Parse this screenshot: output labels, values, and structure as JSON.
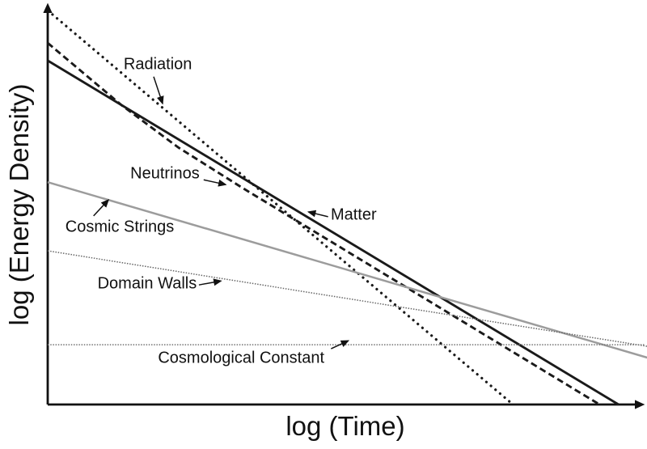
{
  "chart_data": {
    "type": "line",
    "title": "",
    "xlabel": "log (Time)",
    "ylabel": "log (Energy Density)",
    "x_range": [
      0,
      10.1
    ],
    "y_range": [
      0,
      10
    ],
    "grid": false,
    "axis_color": "#111111",
    "note": "Schematic log-log plot of cosmological energy densities vs time; axes unlabeled (arbitrary units).",
    "series": [
      {
        "name": "Radiation",
        "style": "dotted",
        "color": "#1a1a1a",
        "points": [
          [
            0.08,
            9.72
          ],
          [
            7.8,
            0.02
          ]
        ]
      },
      {
        "name": "Neutrinos",
        "style": "dashed",
        "color": "#1a1a1a",
        "points": [
          [
            0,
            9.01
          ],
          [
            1.24,
            7.46
          ],
          [
            2.19,
            6.41
          ],
          [
            3.27,
            5.4
          ],
          [
            9.27,
            0
          ]
        ]
      },
      {
        "name": "Matter",
        "style": "solid",
        "color": "#1a1a1a",
        "points": [
          [
            0,
            8.57
          ],
          [
            9.59,
            0
          ]
        ]
      },
      {
        "name": "Cosmic Strings",
        "style": "solid-gray",
        "color": "#9c9c9c",
        "points": [
          [
            0,
            5.54
          ],
          [
            10.07,
            1.17
          ]
        ]
      },
      {
        "name": "Domain Walls",
        "style": "fine-dotted",
        "color": "#666666",
        "points": [
          [
            0,
            3.83
          ],
          [
            10.07,
            1.45
          ]
        ]
      },
      {
        "name": "Cosmological Constant",
        "style": "fine-dotted",
        "color": "#717171",
        "points": [
          [
            0,
            1.49
          ],
          [
            10.03,
            1.49
          ]
        ]
      }
    ],
    "annotations": [
      {
        "text": "Radiation",
        "x": 1.85,
        "y": 8.47,
        "arrow": {
          "from": [
            1.78,
            8.17
          ],
          "to": [
            1.93,
            7.5
          ]
        }
      },
      {
        "text": "Neutrinos",
        "x": 1.97,
        "y": 5.75,
        "arrow": {
          "from": [
            2.62,
            5.6
          ],
          "to": [
            2.99,
            5.48
          ]
        }
      },
      {
        "text": "Matter",
        "x": 5.14,
        "y": 4.72,
        "arrow": {
          "from": [
            4.71,
            4.68
          ],
          "to": [
            4.38,
            4.8
          ]
        }
      },
      {
        "text": "Cosmic Strings",
        "x": 1.21,
        "y": 4.42,
        "arrow": {
          "from": [
            0.77,
            4.7
          ],
          "to": [
            1.02,
            5.1
          ]
        }
      },
      {
        "text": "Domain Walls",
        "x": 1.67,
        "y": 3.0,
        "arrow": {
          "from": [
            2.54,
            2.98
          ],
          "to": [
            2.91,
            3.08
          ]
        }
      },
      {
        "text": "Cosmological Constant",
        "x": 3.25,
        "y": 1.15,
        "arrow": {
          "from": [
            4.76,
            1.39
          ],
          "to": [
            5.05,
            1.59
          ]
        }
      }
    ]
  }
}
